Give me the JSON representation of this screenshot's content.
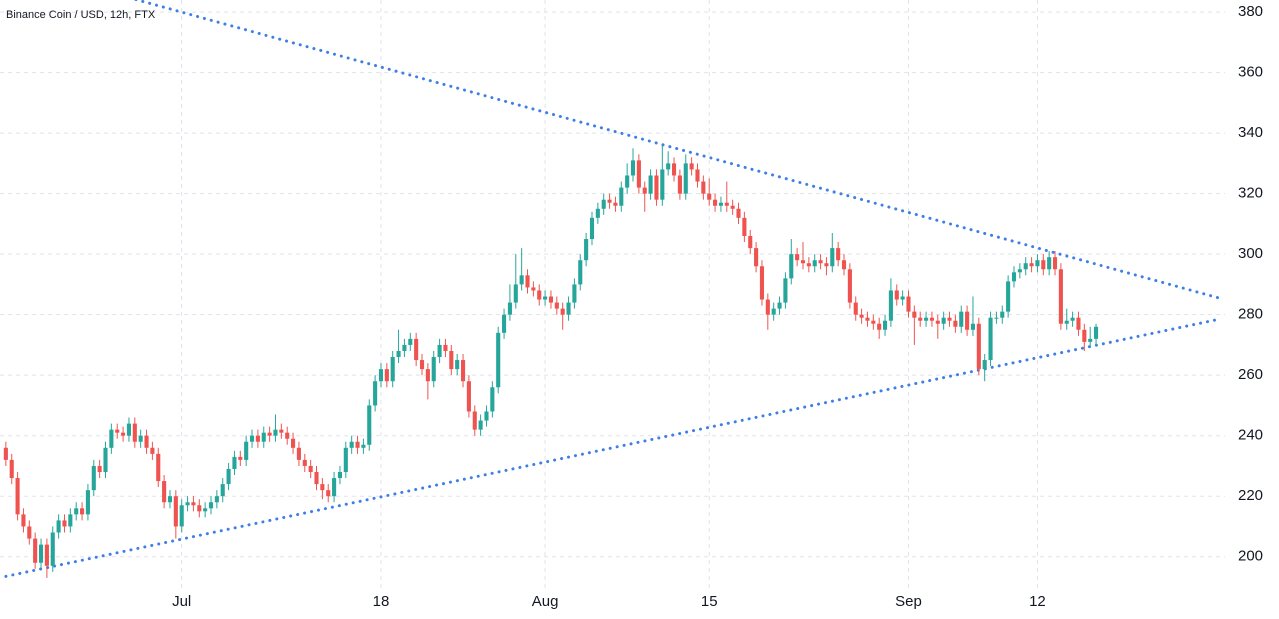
{
  "chart_data": {
    "type": "candlestick",
    "title": "Binance Coin / USD, 12h, FTX",
    "up_color": "#26a69a",
    "down_color": "#ef5350",
    "grid": true,
    "xlim": [
      -1,
      208
    ],
    "ylim": [
      189,
      384
    ],
    "yticks": [
      200,
      220,
      240,
      260,
      280,
      300,
      320,
      340,
      360,
      380
    ],
    "xticks": [
      {
        "value": 30,
        "label": "Jul"
      },
      {
        "value": 64,
        "label": "18"
      },
      {
        "value": 92,
        "label": "Aug"
      },
      {
        "value": 120,
        "label": "15"
      },
      {
        "value": 154,
        "label": "Sep"
      },
      {
        "value": 176,
        "label": "12"
      }
    ],
    "trendlines": [
      {
        "color": "#3d7fe6",
        "x": [
          0,
          207
        ],
        "y": [
          396,
          285.5
        ]
      },
      {
        "color": "#3d7fe6",
        "x": [
          0,
          207
        ],
        "y": [
          193.5,
          278.5
        ]
      }
    ],
    "ohlc": [
      [
        236,
        238,
        230,
        232
      ],
      [
        232,
        234,
        224,
        226
      ],
      [
        226,
        228,
        212,
        214
      ],
      [
        214,
        216,
        208,
        210
      ],
      [
        210,
        212,
        204,
        206
      ],
      [
        206,
        208,
        196,
        198
      ],
      [
        198,
        206,
        196,
        204
      ],
      [
        204,
        206,
        193,
        197
      ],
      [
        197,
        210,
        195,
        208
      ],
      [
        208,
        214,
        206,
        212
      ],
      [
        212,
        214,
        208,
        210
      ],
      [
        210,
        216,
        208,
        214
      ],
      [
        214,
        218,
        212,
        216
      ],
      [
        216,
        218,
        212,
        214
      ],
      [
        214,
        224,
        212,
        222
      ],
      [
        222,
        232,
        220,
        230
      ],
      [
        230,
        232,
        226,
        228
      ],
      [
        228,
        238,
        226,
        236
      ],
      [
        236,
        244,
        234,
        242
      ],
      [
        242,
        244,
        239,
        241
      ],
      [
        241,
        243,
        238,
        240
      ],
      [
        240,
        246,
        238,
        244
      ],
      [
        244,
        246,
        236,
        238
      ],
      [
        238,
        242,
        236,
        240
      ],
      [
        240,
        242,
        234,
        236
      ],
      [
        236,
        238,
        232,
        234
      ],
      [
        234,
        236,
        223,
        225
      ],
      [
        225,
        227,
        216,
        218
      ],
      [
        218,
        222,
        216,
        220
      ],
      [
        220,
        222,
        206,
        210
      ],
      [
        210,
        219,
        208,
        217
      ],
      [
        217,
        220,
        215,
        218
      ],
      [
        218,
        220,
        215,
        217
      ],
      [
        217,
        219,
        213,
        215
      ],
      [
        215,
        218,
        213,
        216
      ],
      [
        216,
        220,
        214,
        218
      ],
      [
        218,
        222,
        216,
        220
      ],
      [
        220,
        226,
        218,
        224
      ],
      [
        224,
        231,
        222,
        229
      ],
      [
        229,
        235,
        227,
        233
      ],
      [
        233,
        235,
        230,
        232
      ],
      [
        232,
        240,
        230,
        238
      ],
      [
        238,
        242,
        236,
        240
      ],
      [
        240,
        242,
        236,
        238
      ],
      [
        238,
        243,
        236,
        241
      ],
      [
        241,
        243,
        238,
        240
      ],
      [
        240,
        247,
        238,
        242
      ],
      [
        242,
        244,
        239,
        241
      ],
      [
        241,
        243,
        237,
        239
      ],
      [
        239,
        241,
        234,
        236
      ],
      [
        236,
        238,
        230,
        232
      ],
      [
        232,
        234,
        228,
        230
      ],
      [
        230,
        232,
        226,
        228
      ],
      [
        228,
        230,
        222,
        224
      ],
      [
        224,
        226,
        219,
        222
      ],
      [
        222,
        224,
        218,
        220
      ],
      [
        220,
        228,
        218,
        226
      ],
      [
        226,
        230,
        224,
        228
      ],
      [
        228,
        238,
        226,
        236
      ],
      [
        236,
        240,
        234,
        238
      ],
      [
        238,
        240,
        234,
        236
      ],
      [
        236,
        239,
        234,
        237
      ],
      [
        237,
        252,
        235,
        250
      ],
      [
        250,
        260,
        248,
        258
      ],
      [
        258,
        264,
        256,
        262
      ],
      [
        262,
        264,
        256,
        258
      ],
      [
        258,
        268,
        256,
        266
      ],
      [
        266,
        275,
        264,
        268
      ],
      [
        268,
        272,
        266,
        270
      ],
      [
        270,
        274,
        268,
        272
      ],
      [
        272,
        274,
        263,
        265
      ],
      [
        265,
        267,
        260,
        262
      ],
      [
        262,
        264,
        252,
        258
      ],
      [
        258,
        268,
        256,
        266
      ],
      [
        266,
        272,
        264,
        270
      ],
      [
        270,
        272,
        266,
        268
      ],
      [
        268,
        270,
        260,
        262
      ],
      [
        262,
        267,
        260,
        265
      ],
      [
        265,
        267,
        256,
        258
      ],
      [
        258,
        260,
        246,
        248
      ],
      [
        248,
        250,
        240,
        242
      ],
      [
        242,
        247,
        240,
        245
      ],
      [
        245,
        250,
        243,
        248
      ],
      [
        248,
        258,
        246,
        256
      ],
      [
        256,
        276,
        254,
        274
      ],
      [
        274,
        282,
        272,
        280
      ],
      [
        280,
        290,
        278,
        284
      ],
      [
        284,
        300,
        282,
        290
      ],
      [
        290,
        302,
        288,
        293
      ],
      [
        293,
        295,
        287,
        289
      ],
      [
        289,
        291,
        286,
        288
      ],
      [
        288,
        290,
        283,
        285
      ],
      [
        285,
        288,
        283,
        286
      ],
      [
        286,
        288,
        282,
        284
      ],
      [
        284,
        286,
        280,
        282
      ],
      [
        282,
        284,
        275,
        280
      ],
      [
        280,
        286,
        278,
        284
      ],
      [
        284,
        292,
        282,
        290
      ],
      [
        290,
        300,
        288,
        298
      ],
      [
        298,
        307,
        296,
        305
      ],
      [
        305,
        314,
        303,
        312
      ],
      [
        312,
        317,
        310,
        315
      ],
      [
        315,
        320,
        313,
        318
      ],
      [
        318,
        320,
        315,
        317
      ],
      [
        317,
        319,
        314,
        316
      ],
      [
        316,
        324,
        314,
        322
      ],
      [
        322,
        330,
        320,
        326
      ],
      [
        326,
        335,
        324,
        331
      ],
      [
        331,
        333,
        320,
        322
      ],
      [
        322,
        324,
        314,
        320
      ],
      [
        320,
        328,
        318,
        326
      ],
      [
        326,
        328,
        316,
        318
      ],
      [
        318,
        336,
        316,
        328
      ],
      [
        328,
        334,
        326,
        330
      ],
      [
        330,
        332,
        324,
        326
      ],
      [
        326,
        328,
        318,
        320
      ],
      [
        320,
        333,
        318,
        330
      ],
      [
        330,
        332,
        326,
        328
      ],
      [
        328,
        330,
        322,
        324
      ],
      [
        324,
        326,
        318,
        320
      ],
      [
        320,
        325,
        316,
        318
      ],
      [
        318,
        320,
        314,
        316
      ],
      [
        316,
        319,
        314,
        317
      ],
      [
        317,
        324,
        314,
        316
      ],
      [
        316,
        318,
        313,
        315
      ],
      [
        315,
        317,
        310,
        312
      ],
      [
        312,
        314,
        304,
        306
      ],
      [
        306,
        308,
        300,
        302
      ],
      [
        302,
        304,
        294,
        296
      ],
      [
        296,
        298,
        283,
        285
      ],
      [
        285,
        287,
        275,
        280
      ],
      [
        280,
        284,
        278,
        282
      ],
      [
        282,
        286,
        280,
        284
      ],
      [
        284,
        294,
        282,
        292
      ],
      [
        292,
        305,
        290,
        300
      ],
      [
        300,
        302,
        296,
        298
      ],
      [
        298,
        304,
        295,
        297
      ],
      [
        297,
        299,
        294,
        296
      ],
      [
        296,
        300,
        294,
        298
      ],
      [
        298,
        300,
        295,
        297
      ],
      [
        297,
        299,
        293,
        296
      ],
      [
        296,
        307,
        294,
        302
      ],
      [
        302,
        304,
        296,
        298
      ],
      [
        298,
        300,
        293,
        295
      ],
      [
        295,
        297,
        282,
        284
      ],
      [
        284,
        286,
        278,
        280
      ],
      [
        280,
        282,
        277,
        279
      ],
      [
        279,
        281,
        276,
        278
      ],
      [
        278,
        280,
        275,
        277
      ],
      [
        277,
        279,
        272,
        275
      ],
      [
        275,
        280,
        273,
        278
      ],
      [
        278,
        292,
        276,
        288
      ],
      [
        288,
        290,
        283,
        285
      ],
      [
        285,
        288,
        283,
        286
      ],
      [
        286,
        288,
        279,
        281
      ],
      [
        281,
        283,
        270,
        279
      ],
      [
        279,
        281,
        276,
        278
      ],
      [
        278,
        281,
        276,
        279
      ],
      [
        279,
        281,
        276,
        278
      ],
      [
        278,
        280,
        272,
        277
      ],
      [
        277,
        281,
        275,
        279
      ],
      [
        279,
        281,
        276,
        278
      ],
      [
        278,
        280,
        274,
        276
      ],
      [
        276,
        283,
        274,
        281
      ],
      [
        281,
        283,
        273,
        275
      ],
      [
        275,
        286,
        273,
        277
      ],
      [
        277,
        279,
        260,
        262
      ],
      [
        262,
        267,
        258,
        265
      ],
      [
        265,
        281,
        263,
        279
      ],
      [
        279,
        281,
        277,
        279
      ],
      [
        279,
        283,
        277,
        281
      ],
      [
        281,
        293,
        279,
        291
      ],
      [
        291,
        296,
        289,
        294
      ],
      [
        294,
        297,
        292,
        295
      ],
      [
        295,
        299,
        293,
        297
      ],
      [
        297,
        299,
        294,
        296
      ],
      [
        296,
        300,
        294,
        298
      ],
      [
        298,
        300,
        293,
        295
      ],
      [
        295,
        301,
        293,
        299
      ],
      [
        299,
        301,
        293,
        295
      ],
      [
        295,
        297,
        275,
        277
      ],
      [
        277,
        282,
        275,
        278
      ],
      [
        278,
        281,
        276,
        279
      ],
      [
        279,
        281,
        273,
        275
      ],
      [
        275,
        277,
        268,
        271
      ],
      [
        271,
        276,
        269,
        272
      ],
      [
        272,
        277,
        270,
        276
      ]
    ]
  }
}
